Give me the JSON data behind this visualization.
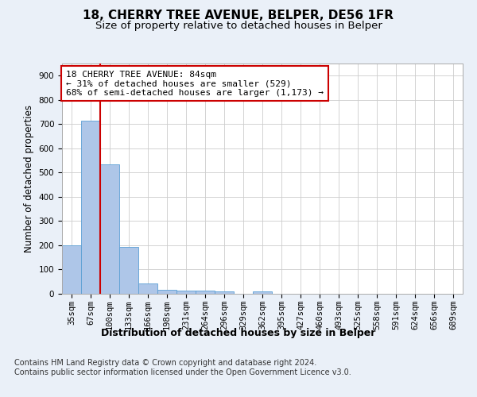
{
  "title": "18, CHERRY TREE AVENUE, BELPER, DE56 1FR",
  "subtitle": "Size of property relative to detached houses in Belper",
  "xlabel": "Distribution of detached houses by size in Belper",
  "ylabel": "Number of detached properties",
  "categories": [
    "35sqm",
    "67sqm",
    "100sqm",
    "133sqm",
    "166sqm",
    "198sqm",
    "231sqm",
    "264sqm",
    "296sqm",
    "329sqm",
    "362sqm",
    "395sqm",
    "427sqm",
    "460sqm",
    "493sqm",
    "525sqm",
    "558sqm",
    "591sqm",
    "624sqm",
    "656sqm",
    "689sqm"
  ],
  "values": [
    200,
    713,
    535,
    193,
    42,
    18,
    14,
    13,
    10,
    0,
    10,
    0,
    0,
    0,
    0,
    0,
    0,
    0,
    0,
    0,
    0
  ],
  "bar_color": "#aec6e8",
  "bar_edge_color": "#5a9fd4",
  "annotation_box_text": "18 CHERRY TREE AVENUE: 84sqm\n← 31% of detached houses are smaller (529)\n68% of semi-detached houses are larger (1,173) →",
  "annotation_box_color": "#cc0000",
  "annotation_box_fill": "#ffffff",
  "ylim": [
    0,
    950
  ],
  "yticks": [
    0,
    100,
    200,
    300,
    400,
    500,
    600,
    700,
    800,
    900
  ],
  "bg_color": "#eaf0f8",
  "plot_bg_color": "#ffffff",
  "grid_color": "#cccccc",
  "footer_text": "Contains HM Land Registry data © Crown copyright and database right 2024.\nContains public sector information licensed under the Open Government Licence v3.0.",
  "title_fontsize": 11,
  "subtitle_fontsize": 9.5,
  "xlabel_fontsize": 9,
  "ylabel_fontsize": 8.5,
  "tick_fontsize": 7.5,
  "annotation_fontsize": 8,
  "footer_fontsize": 7
}
